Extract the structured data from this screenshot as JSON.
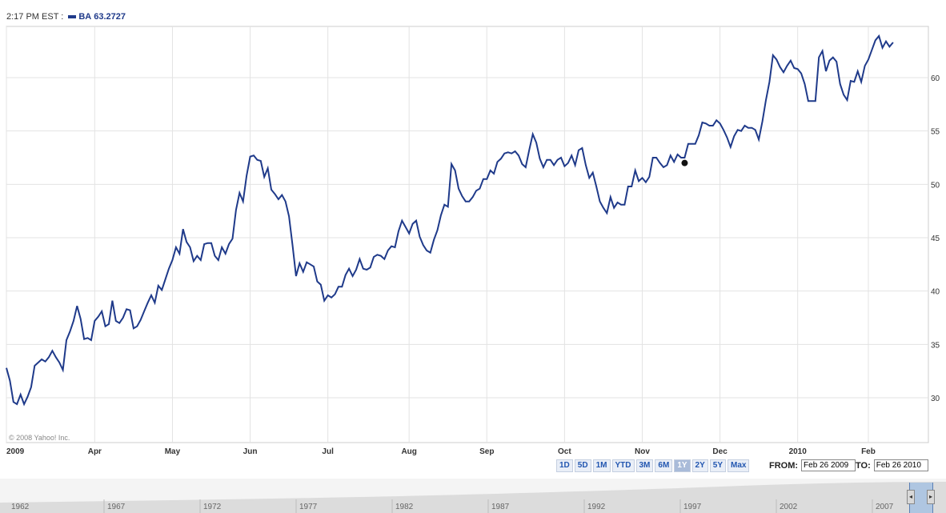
{
  "header": {
    "time": "2:17 PM EST :",
    "symbol": "BA",
    "price": "63.2727",
    "line_color": "#1f3a8a"
  },
  "copyright": "© 2008 Yahoo! Inc.",
  "chart_data": {
    "type": "line",
    "series_color": "#1f3a8a",
    "grid": true,
    "ylim": [
      25.8,
      64.8
    ],
    "y_ticks": [
      30,
      35,
      40,
      45,
      50,
      55,
      60
    ],
    "x_range": [
      0,
      261
    ],
    "x_ticks": [
      {
        "label": "2009",
        "x": 0
      },
      {
        "label": "Apr",
        "x": 25
      },
      {
        "label": "May",
        "x": 47
      },
      {
        "label": "Jun",
        "x": 69
      },
      {
        "label": "Jul",
        "x": 91
      },
      {
        "label": "Aug",
        "x": 114
      },
      {
        "label": "Sep",
        "x": 136
      },
      {
        "label": "Oct",
        "x": 158
      },
      {
        "label": "Nov",
        "x": 180
      },
      {
        "label": "Dec",
        "x": 202
      },
      {
        "label": "2010",
        "x": 224
      },
      {
        "label": "Feb",
        "x": 244
      }
    ],
    "marker": {
      "x": 192,
      "y": 52.0
    },
    "series": [
      {
        "values": [
          [
            0,
            32.8
          ],
          [
            1,
            31.6
          ],
          [
            2,
            29.6
          ],
          [
            3,
            29.4
          ],
          [
            4,
            30.3
          ],
          [
            5,
            29.4
          ],
          [
            6,
            30.1
          ],
          [
            7,
            31.0
          ],
          [
            8,
            33.0
          ],
          [
            9,
            33.3
          ],
          [
            10,
            33.6
          ],
          [
            11,
            33.4
          ],
          [
            12,
            33.8
          ],
          [
            13,
            34.4
          ],
          [
            14,
            33.8
          ],
          [
            15,
            33.3
          ],
          [
            16,
            32.6
          ],
          [
            17,
            35.4
          ],
          [
            18,
            36.2
          ],
          [
            19,
            37.2
          ],
          [
            20,
            38.6
          ],
          [
            21,
            37.4
          ],
          [
            22,
            35.5
          ],
          [
            23,
            35.6
          ],
          [
            24,
            35.4
          ],
          [
            25,
            37.2
          ],
          [
            26,
            37.6
          ],
          [
            27,
            38.1
          ],
          [
            28,
            36.7
          ],
          [
            29,
            36.9
          ],
          [
            30,
            39.1
          ],
          [
            31,
            37.2
          ],
          [
            32,
            37.0
          ],
          [
            33,
            37.5
          ],
          [
            34,
            38.3
          ],
          [
            35,
            38.2
          ],
          [
            36,
            36.5
          ],
          [
            37,
            36.7
          ],
          [
            38,
            37.3
          ],
          [
            39,
            38.1
          ],
          [
            40,
            38.9
          ],
          [
            41,
            39.6
          ],
          [
            42,
            38.9
          ],
          [
            43,
            40.5
          ],
          [
            44,
            40.1
          ],
          [
            45,
            41.1
          ],
          [
            46,
            42.1
          ],
          [
            47,
            42.9
          ],
          [
            48,
            44.1
          ],
          [
            49,
            43.5
          ],
          [
            50,
            45.8
          ],
          [
            51,
            44.6
          ],
          [
            52,
            44.1
          ],
          [
            53,
            42.8
          ],
          [
            54,
            43.3
          ],
          [
            55,
            42.9
          ],
          [
            56,
            44.4
          ],
          [
            57,
            44.5
          ],
          [
            58,
            44.5
          ],
          [
            59,
            43.3
          ],
          [
            60,
            42.9
          ],
          [
            61,
            44.1
          ],
          [
            62,
            43.5
          ],
          [
            63,
            44.4
          ],
          [
            64,
            44.9
          ],
          [
            65,
            47.6
          ],
          [
            66,
            49.2
          ],
          [
            67,
            48.4
          ],
          [
            68,
            50.8
          ],
          [
            69,
            52.6
          ],
          [
            70,
            52.7
          ],
          [
            71,
            52.3
          ],
          [
            72,
            52.2
          ],
          [
            73,
            50.7
          ],
          [
            74,
            51.5
          ],
          [
            75,
            49.5
          ],
          [
            76,
            49.1
          ],
          [
            77,
            48.6
          ],
          [
            78,
            49.0
          ],
          [
            79,
            48.4
          ],
          [
            80,
            47.0
          ],
          [
            81,
            44.3
          ],
          [
            82,
            41.4
          ],
          [
            83,
            42.6
          ],
          [
            84,
            41.8
          ],
          [
            85,
            42.7
          ],
          [
            86,
            42.5
          ],
          [
            87,
            42.3
          ],
          [
            88,
            40.9
          ],
          [
            89,
            40.6
          ],
          [
            90,
            39.1
          ],
          [
            91,
            39.6
          ],
          [
            92,
            39.4
          ],
          [
            93,
            39.7
          ],
          [
            94,
            40.4
          ],
          [
            95,
            40.4
          ],
          [
            96,
            41.5
          ],
          [
            97,
            42.1
          ],
          [
            98,
            41.4
          ],
          [
            99,
            42.0
          ],
          [
            100,
            43.0
          ],
          [
            101,
            42.1
          ],
          [
            102,
            42.0
          ],
          [
            103,
            42.2
          ],
          [
            104,
            43.2
          ],
          [
            105,
            43.4
          ],
          [
            106,
            43.3
          ],
          [
            107,
            43.0
          ],
          [
            108,
            43.8
          ],
          [
            109,
            44.2
          ],
          [
            110,
            44.1
          ],
          [
            111,
            45.6
          ],
          [
            112,
            46.6
          ],
          [
            113,
            46.0
          ],
          [
            114,
            45.4
          ],
          [
            115,
            46.3
          ],
          [
            116,
            46.6
          ],
          [
            117,
            45.1
          ],
          [
            118,
            44.3
          ],
          [
            119,
            43.8
          ],
          [
            120,
            43.6
          ],
          [
            121,
            44.8
          ],
          [
            122,
            45.7
          ],
          [
            123,
            47.1
          ],
          [
            124,
            48.1
          ],
          [
            125,
            47.9
          ],
          [
            126,
            51.9
          ],
          [
            127,
            51.3
          ],
          [
            128,
            49.6
          ],
          [
            129,
            48.9
          ],
          [
            130,
            48.4
          ],
          [
            131,
            48.4
          ],
          [
            132,
            48.8
          ],
          [
            133,
            49.4
          ],
          [
            134,
            49.6
          ],
          [
            135,
            50.5
          ],
          [
            136,
            50.5
          ],
          [
            137,
            51.3
          ],
          [
            138,
            51.0
          ],
          [
            139,
            52.1
          ],
          [
            140,
            52.4
          ],
          [
            141,
            52.9
          ],
          [
            142,
            53.0
          ],
          [
            143,
            52.9
          ],
          [
            144,
            53.1
          ],
          [
            145,
            52.7
          ],
          [
            146,
            51.9
          ],
          [
            147,
            51.6
          ],
          [
            148,
            53.2
          ],
          [
            149,
            54.7
          ],
          [
            150,
            53.9
          ],
          [
            151,
            52.4
          ],
          [
            152,
            51.6
          ],
          [
            153,
            52.3
          ],
          [
            154,
            52.3
          ],
          [
            155,
            51.8
          ],
          [
            156,
            52.3
          ],
          [
            157,
            52.5
          ],
          [
            158,
            51.7
          ],
          [
            159,
            52.0
          ],
          [
            160,
            52.7
          ],
          [
            161,
            51.8
          ],
          [
            162,
            53.2
          ],
          [
            163,
            53.4
          ],
          [
            164,
            51.8
          ],
          [
            165,
            50.6
          ],
          [
            166,
            51.1
          ],
          [
            167,
            49.8
          ],
          [
            168,
            48.4
          ],
          [
            169,
            47.8
          ],
          [
            170,
            47.3
          ],
          [
            171,
            48.8
          ],
          [
            172,
            47.8
          ],
          [
            173,
            48.3
          ],
          [
            174,
            48.1
          ],
          [
            175,
            48.1
          ],
          [
            176,
            49.8
          ],
          [
            177,
            49.8
          ],
          [
            178,
            51.3
          ],
          [
            179,
            50.3
          ],
          [
            180,
            50.6
          ],
          [
            181,
            50.2
          ],
          [
            182,
            50.7
          ],
          [
            183,
            52.5
          ],
          [
            184,
            52.5
          ],
          [
            185,
            52.0
          ],
          [
            186,
            51.6
          ],
          [
            187,
            51.8
          ],
          [
            188,
            52.7
          ],
          [
            189,
            52.1
          ],
          [
            190,
            52.8
          ],
          [
            191,
            52.5
          ],
          [
            192,
            52.5
          ],
          [
            193,
            53.8
          ],
          [
            194,
            53.8
          ],
          [
            195,
            53.8
          ],
          [
            196,
            54.6
          ],
          [
            197,
            55.8
          ],
          [
            198,
            55.7
          ],
          [
            199,
            55.5
          ],
          [
            200,
            55.5
          ],
          [
            201,
            56.0
          ],
          [
            202,
            55.7
          ],
          [
            203,
            55.1
          ],
          [
            204,
            54.4
          ],
          [
            205,
            53.5
          ],
          [
            206,
            54.5
          ],
          [
            207,
            55.1
          ],
          [
            208,
            55.0
          ],
          [
            209,
            55.5
          ],
          [
            210,
            55.3
          ],
          [
            211,
            55.3
          ],
          [
            212,
            55.1
          ],
          [
            213,
            54.2
          ],
          [
            214,
            55.9
          ],
          [
            215,
            57.9
          ],
          [
            216,
            59.6
          ],
          [
            217,
            62.1
          ],
          [
            218,
            61.7
          ],
          [
            219,
            61.0
          ],
          [
            220,
            60.5
          ],
          [
            221,
            61.1
          ],
          [
            222,
            61.6
          ],
          [
            223,
            60.9
          ],
          [
            224,
            60.8
          ],
          [
            225,
            60.4
          ],
          [
            226,
            59.4
          ],
          [
            227,
            57.8
          ],
          [
            228,
            57.8
          ],
          [
            229,
            57.8
          ],
          [
            230,
            61.9
          ],
          [
            231,
            62.5
          ],
          [
            232,
            60.6
          ],
          [
            233,
            61.6
          ],
          [
            234,
            61.9
          ],
          [
            235,
            61.5
          ],
          [
            236,
            59.4
          ],
          [
            237,
            58.4
          ],
          [
            238,
            57.9
          ],
          [
            239,
            59.7
          ],
          [
            240,
            59.6
          ],
          [
            241,
            60.6
          ],
          [
            242,
            59.6
          ],
          [
            243,
            61.1
          ],
          [
            244,
            61.7
          ],
          [
            245,
            62.6
          ],
          [
            246,
            63.5
          ],
          [
            247,
            63.9
          ],
          [
            248,
            62.8
          ],
          [
            249,
            63.4
          ],
          [
            250,
            62.9
          ],
          [
            251,
            63.3
          ]
        ]
      }
    ]
  },
  "range_buttons": [
    {
      "label": "1D",
      "active": false
    },
    {
      "label": "5D",
      "active": false
    },
    {
      "label": "1M",
      "active": false
    },
    {
      "label": "YTD",
      "active": false
    },
    {
      "label": "3M",
      "active": false
    },
    {
      "label": "6M",
      "active": false
    },
    {
      "label": "1Y",
      "active": true
    },
    {
      "label": "2Y",
      "active": false
    },
    {
      "label": "5Y",
      "active": false
    },
    {
      "label": "Max",
      "active": false
    }
  ],
  "dates": {
    "from_label": "FROM:",
    "from_value": "Feb 26 2009",
    "to_label": "TO:",
    "to_value": "Feb 26 2010"
  },
  "scrubber": {
    "years": [
      "1962",
      "1967",
      "1972",
      "1977",
      "1982",
      "1987",
      "1992",
      "1997",
      "2002",
      "2007"
    ]
  }
}
